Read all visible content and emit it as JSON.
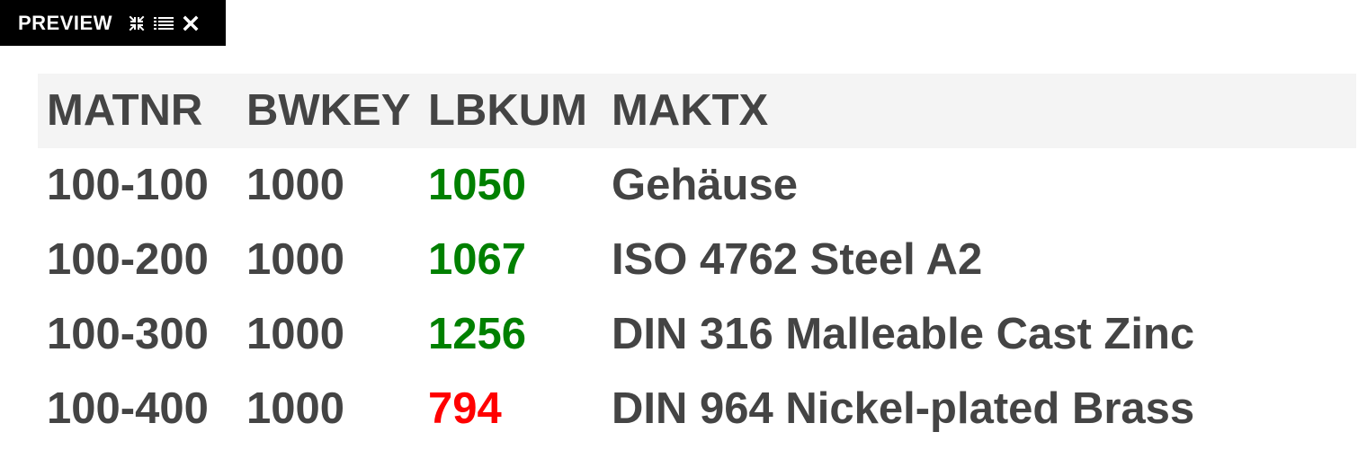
{
  "preview_bar": {
    "title": "PREVIEW",
    "icons": [
      "collapse-icon",
      "list-icon",
      "close-icon"
    ]
  },
  "table": {
    "columns": [
      "MATNR",
      "BWKEY",
      "LBKUM",
      "MAKTX"
    ],
    "rows": [
      {
        "matnr": "100-100",
        "bwkey": "1000",
        "lbkum": "1050",
        "maktx": "Gehäuse",
        "status": "good"
      },
      {
        "matnr": "100-200",
        "bwkey": "1000",
        "lbkum": "1067",
        "maktx": "ISO 4762 Steel A2",
        "status": "good"
      },
      {
        "matnr": "100-300",
        "bwkey": "1000",
        "lbkum": "1256",
        "maktx": "DIN 316 Malleable Cast Zinc",
        "status": "good"
      },
      {
        "matnr": "100-400",
        "bwkey": "1000",
        "lbkum": "794",
        "maktx": "DIN 964 Nickel-plated Brass",
        "status": "bad"
      }
    ]
  },
  "colors": {
    "text": "#444444",
    "header_bg": "#f4f4f4",
    "good": "#008000",
    "bad": "#ff0000",
    "bar_bg": "#000000"
  }
}
